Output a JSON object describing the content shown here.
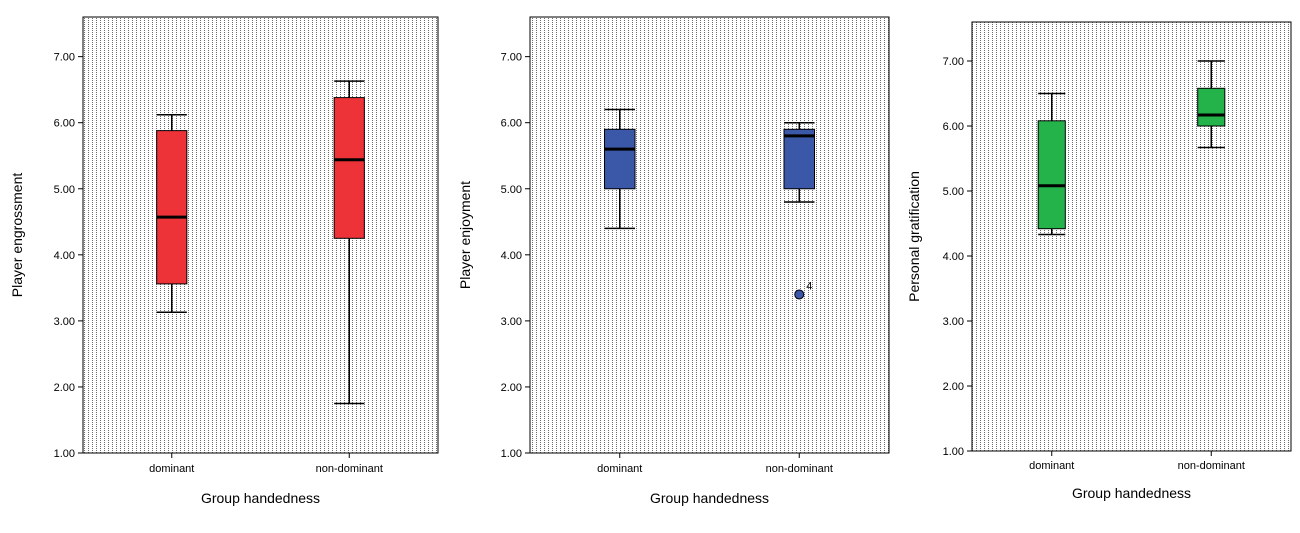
{
  "chart_data": [
    {
      "type": "box",
      "xlabel": "Group handedness",
      "ylabel": "Player engrossment",
      "ylim": [
        1.0,
        7.6
      ],
      "yticks": [
        "1.00",
        "2.00",
        "3.00",
        "4.00",
        "5.00",
        "6.00",
        "7.00"
      ],
      "ytick_values": [
        1,
        2,
        3,
        4,
        5,
        6,
        7
      ],
      "categories": [
        "dominant",
        "non-dominant"
      ],
      "fill_color": "#ee3338",
      "background": "dotted",
      "boxes": [
        {
          "category": "dominant",
          "whisker_low": 3.13,
          "q1": 3.56,
          "median": 4.57,
          "q3": 5.88,
          "whisker_high": 6.12
        },
        {
          "category": "non-dominant",
          "whisker_low": 1.75,
          "q1": 4.25,
          "median": 5.44,
          "q3": 6.38,
          "whisker_high": 6.63
        }
      ],
      "outliers": []
    },
    {
      "type": "box",
      "xlabel": "Group handedness",
      "ylabel": "Player enjoyment",
      "ylim": [
        1.0,
        7.6
      ],
      "yticks": [
        "1.00",
        "2.00",
        "3.00",
        "4.00",
        "5.00",
        "6.00",
        "7.00"
      ],
      "ytick_values": [
        1,
        2,
        3,
        4,
        5,
        6,
        7
      ],
      "categories": [
        "dominant",
        "non-dominant"
      ],
      "fill_color": "#3b57a8",
      "background": "dotted",
      "boxes": [
        {
          "category": "dominant",
          "whisker_low": 4.4,
          "q1": 5.0,
          "median": 5.6,
          "q3": 5.9,
          "whisker_high": 6.2
        },
        {
          "category": "non-dominant",
          "whisker_low": 4.8,
          "q1": 5.0,
          "median": 5.8,
          "q3": 5.9,
          "whisker_high": 6.0
        }
      ],
      "outliers": [
        {
          "category": "non-dominant",
          "value": 3.4,
          "label": "4"
        }
      ]
    },
    {
      "type": "box",
      "xlabel": "Group handedness",
      "ylabel": "Personal gratification",
      "ylim": [
        1.0,
        7.6
      ],
      "yticks": [
        "1.00",
        "2.00",
        "3.00",
        "4.00",
        "5.00",
        "6.00",
        "7.00"
      ],
      "ytick_values": [
        1,
        2,
        3,
        4,
        5,
        6,
        7
      ],
      "categories": [
        "dominant",
        "non-dominant"
      ],
      "fill_color": "#23b34a",
      "background": "dotted",
      "boxes": [
        {
          "category": "dominant",
          "whisker_low": 4.33,
          "q1": 4.42,
          "median": 5.08,
          "q3": 6.08,
          "whisker_high": 6.5
        },
        {
          "category": "non-dominant",
          "whisker_low": 5.67,
          "q1": 6.0,
          "median": 6.17,
          "q3": 6.58,
          "whisker_high": 7.0
        }
      ],
      "outliers": []
    }
  ]
}
